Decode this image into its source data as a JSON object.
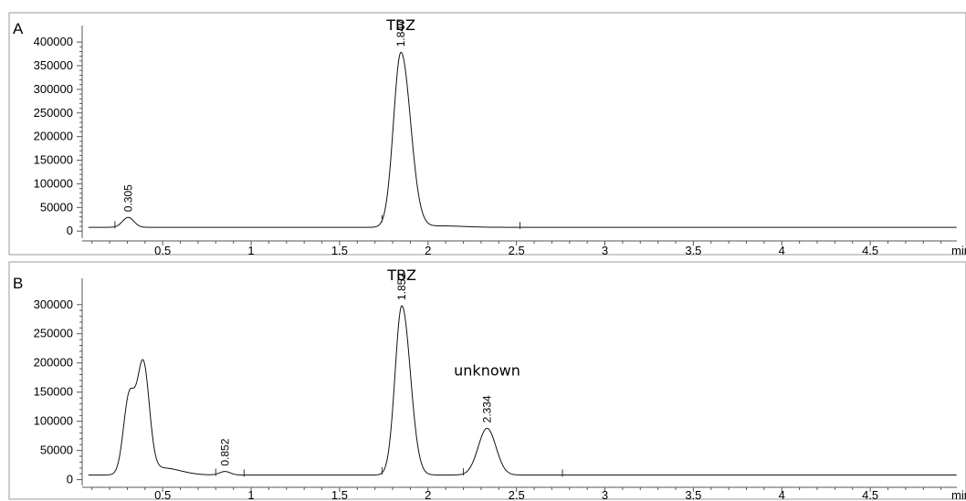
{
  "chart_data": [
    {
      "type": "line",
      "panel_label": "A",
      "x_unit_label": "min",
      "x_ticks": [
        0.5,
        1,
        1.5,
        2,
        2.5,
        3,
        3.5,
        4,
        4.5
      ],
      "x_tick_labels": [
        "0.5",
        "1",
        "1.5",
        "2",
        "2.5",
        "3",
        "3.5",
        "4",
        "4.5"
      ],
      "xlim": [
        0.05,
        5.0
      ],
      "y_ticks": [
        0,
        50000,
        100000,
        150000,
        200000,
        250000,
        300000,
        350000,
        400000
      ],
      "y_tick_labels": [
        "0",
        "50000",
        "100000",
        "150000",
        "200000",
        "250000",
        "300000",
        "350000",
        "400000"
      ],
      "ylim": [
        -15000,
        435000
      ],
      "baseline": 8000,
      "peaks": [
        {
          "rt": 0.305,
          "label": "0.305",
          "height": 21000,
          "sigma": 0.032
        },
        {
          "rt": 1.847,
          "label": "1.847",
          "height": 370000,
          "sigma": 0.042,
          "tail": 0.012
        },
        {
          "rt": 2.08,
          "label": "",
          "height": 3000,
          "sigma": 0.12
        }
      ],
      "annotations": [
        {
          "text": "TBZ",
          "x": 1.847
        }
      ],
      "integration_markers": [
        0.23,
        1.74,
        2.52
      ]
    },
    {
      "type": "line",
      "panel_label": "B",
      "x_unit_label": "min",
      "x_ticks": [
        0.5,
        1,
        1.5,
        2,
        2.5,
        3,
        3.5,
        4,
        4.5
      ],
      "x_tick_labels": [
        "0.5",
        "1",
        "1.5",
        "2",
        "2.5",
        "3",
        "3.5",
        "4",
        "4.5"
      ],
      "xlim": [
        0.05,
        5.0
      ],
      "y_ticks": [
        0,
        50000,
        100000,
        150000,
        200000,
        250000,
        300000
      ],
      "y_tick_labels": [
        "0",
        "50000",
        "100000",
        "150000",
        "200000",
        "250000",
        "300000"
      ],
      "ylim": [
        -10000,
        345000
      ],
      "baseline": 8000,
      "peaks": [
        {
          "rt": 0.31,
          "label": "",
          "height": 130000,
          "sigma": 0.032
        },
        {
          "rt": 0.39,
          "label": "",
          "height": 185000,
          "sigma": 0.034
        },
        {
          "rt": 0.5,
          "label": "",
          "height": 12000,
          "sigma": 0.1
        },
        {
          "rt": 0.852,
          "label": "0.852",
          "height": 6000,
          "sigma": 0.03
        },
        {
          "rt": 1.852,
          "label": "1.852",
          "height": 290000,
          "sigma": 0.038,
          "tail": 0.01
        },
        {
          "rt": 2.334,
          "label": "2.334",
          "height": 80000,
          "sigma": 0.05
        }
      ],
      "annotations": [
        {
          "text": "TBZ",
          "x": 1.852
        },
        {
          "text": "unknown",
          "x": 2.334
        }
      ],
      "integration_markers": [
        0.8,
        0.96,
        1.74,
        2.2,
        2.76
      ]
    }
  ]
}
